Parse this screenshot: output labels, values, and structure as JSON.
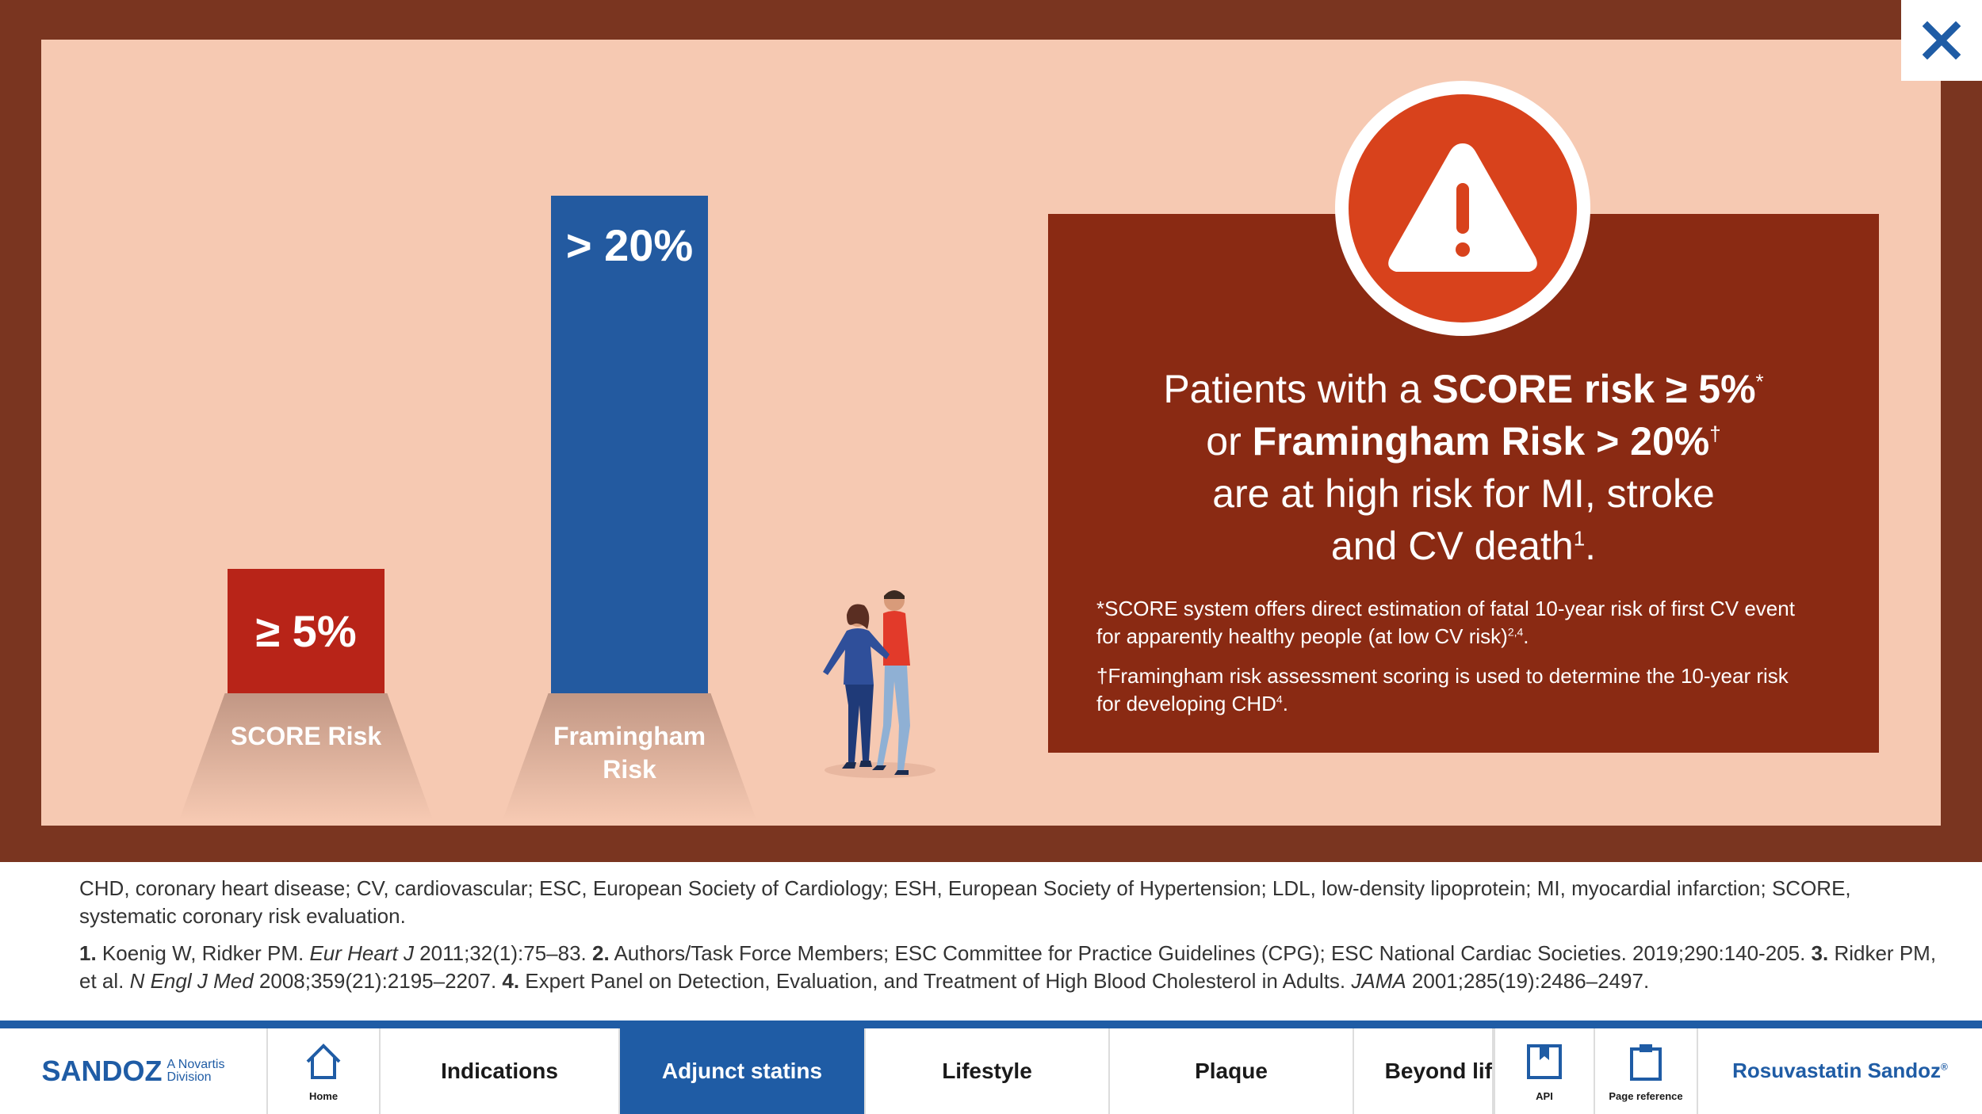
{
  "modal": {
    "close_icon": "close-icon",
    "bars": [
      {
        "value_label": "≥ 5%",
        "axis_label": "SCORE Risk",
        "color": "#b82418"
      },
      {
        "value_label": "> 20%",
        "axis_label": "Framingham Risk",
        "color": "#235aa0"
      }
    ],
    "callout": {
      "icon": "warning-triangle-icon",
      "headline": {
        "p1": "Patients with a ",
        "b1": "SCORE risk ≥ 5%",
        "s1": "*",
        "p2": "or ",
        "b2": "Framingham Risk > 20%",
        "s2": "†",
        "p3": "are at high risk for MI, stroke",
        "p4": "and CV death",
        "s4": "1",
        "p5": "."
      },
      "footnote_score": "*SCORE system offers direct estimation of fatal 10-year risk of first CV event for apparently healthy people (at low CV risk)",
      "footnote_score_sup": "2,4",
      "footnote_score_end": ".",
      "footnote_fram": "†Framingham risk assessment scoring is used to determine the 10-year risk for developing CHD",
      "footnote_fram_sup": "4",
      "footnote_fram_end": "."
    }
  },
  "abbreviations": "CHD, coronary heart disease; CV, cardiovascular; ESC, European Society of Cardiology; ESH, European Society of Hypertension; LDL, low-density lipoprotein; MI, myocardial infarction; SCORE, systematic coronary risk evaluation.",
  "references": {
    "n1": "1.",
    "r1a": " Koenig W, Ridker PM. ",
    "r1j": "Eur Heart J",
    "r1b": " 2011;32(1):75–83. ",
    "n2": "2.",
    "r2": " Authors/Task Force Members; ESC Committee for Practice Guidelines (CPG); ESC National Cardiac Societies. 2019;290:140-205. ",
    "n3": "3.",
    "r3a": " Ridker PM, et al. ",
    "r3j": "N Engl J Med",
    "r3b": " 2008;359(21):2195–2207. ",
    "n4": "4.",
    "r4a": " Expert Panel on Detection, Evaluation, and Treatment of High Blood Cholesterol in Adults. ",
    "r4j": "JAMA",
    "r4b": " 2001;285(19):2486–2497."
  },
  "nav": {
    "logo_main": "SANDOZ",
    "logo_sub_1": "A Novartis",
    "logo_sub_2": "Division",
    "home_label": "Home",
    "tabs": [
      {
        "label": "Indications"
      },
      {
        "label": "Adjunct statins"
      },
      {
        "label": "Lifestyle"
      },
      {
        "label": "Plaque"
      },
      {
        "label": "Beyond lif"
      }
    ],
    "api_label": "API",
    "page_reference_label": "Page reference",
    "brand": "Rosuvastatin Sandoz",
    "brand_tm": "®",
    "active_color": "#1f5ca5"
  }
}
